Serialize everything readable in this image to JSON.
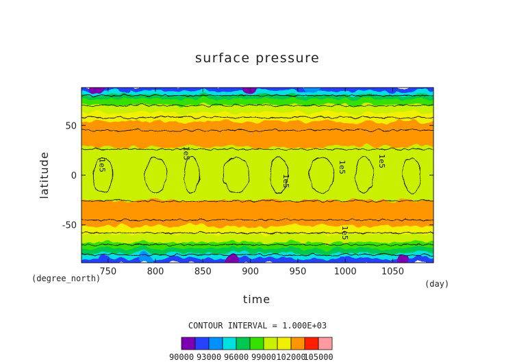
{
  "chart_data": {
    "type": "heatmap",
    "title": "surface pressure",
    "xlabel": "time",
    "ylabel": "latitude",
    "x_unit": "(day)",
    "y_unit": "(degree_north)",
    "xlim": [
      722,
      1093
    ],
    "ylim": [
      -88,
      88
    ],
    "x_ticks": [
      750,
      800,
      850,
      900,
      950,
      1000,
      1050
    ],
    "y_ticks": [
      50,
      0,
      -50
    ],
    "contour_interval_text": "CONTOUR INTERVAL = 1.000E+03",
    "contour_labels": [
      {
        "text": "1e5",
        "x": 741,
        "y": 10
      },
      {
        "text": "1e5",
        "x": 830,
        "y": 22
      },
      {
        "text": "1e5",
        "x": 935,
        "y": -6
      },
      {
        "text": "1e5",
        "x": 994,
        "y": 8
      },
      {
        "text": "1e5",
        "x": 1036,
        "y": 14
      },
      {
        "text": "1e5",
        "x": 997,
        "y": -58
      }
    ],
    "colorbar": {
      "levels": [
        90000,
        91500,
        93000,
        94500,
        96000,
        97500,
        99000,
        100500,
        102000,
        103500,
        105000
      ],
      "colors": [
        "#7d00b0",
        "#2840ff",
        "#0090ff",
        "#00e0e0",
        "#00c850",
        "#36e000",
        "#c8f000",
        "#f0f000",
        "#ff9600",
        "#ff1e00",
        "#ff9aa0"
      ],
      "tick_labels": [
        "90000",
        "93000",
        "96000",
        "99000",
        "102000",
        "105000"
      ]
    },
    "latitude_bands": [
      {
        "lat_from": 88,
        "lat_to": 82,
        "pressure_range": "90000-97500"
      },
      {
        "lat_from": 82,
        "lat_to": 70,
        "pressure_range": "96000-100500"
      },
      {
        "lat_from": 70,
        "lat_to": 55,
        "pressure_range": "99000-102000"
      },
      {
        "lat_from": 55,
        "lat_to": 25,
        "pressure_range": "101000-102000"
      },
      {
        "lat_from": 25,
        "lat_to": -25,
        "pressure_range": "100000-101000"
      },
      {
        "lat_from": -25,
        "lat_to": -55,
        "pressure_range": "101000-102000"
      },
      {
        "lat_from": -55,
        "lat_to": -70,
        "pressure_range": "99000-102000"
      },
      {
        "lat_from": -70,
        "lat_to": -82,
        "pressure_range": "96000-100500"
      },
      {
        "lat_from": -82,
        "lat_to": -88,
        "pressure_range": "90000-97500"
      }
    ]
  }
}
